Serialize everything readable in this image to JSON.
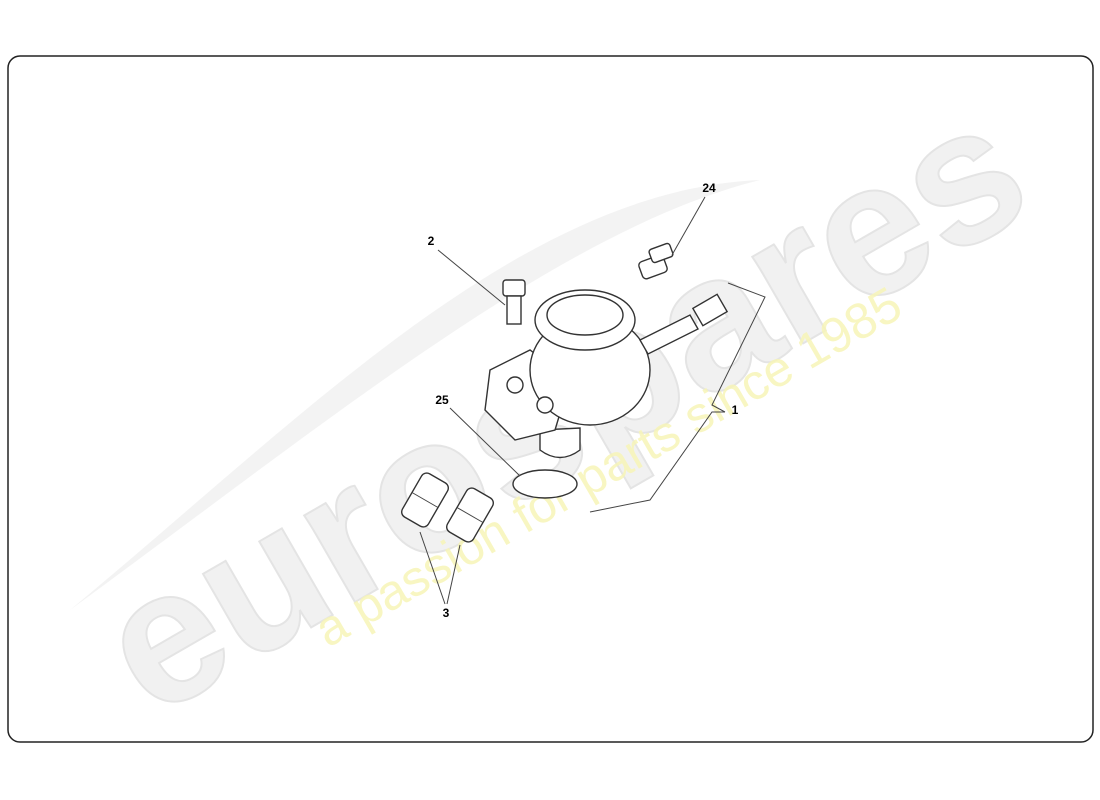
{
  "watermark": {
    "brand": "eurospares",
    "slogan": "a passion for parts since 1985"
  },
  "callouts": [
    {
      "label": "1"
    },
    {
      "label": "2"
    },
    {
      "label": "3"
    },
    {
      "label": "24"
    },
    {
      "label": "25"
    }
  ]
}
